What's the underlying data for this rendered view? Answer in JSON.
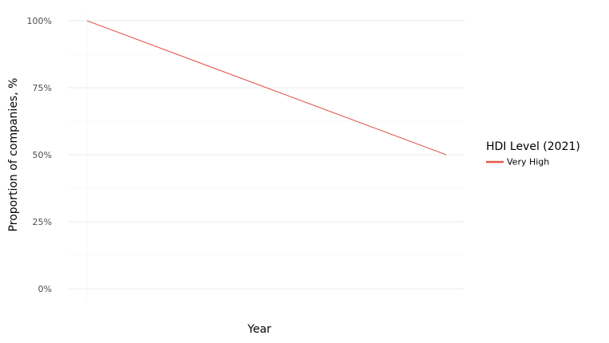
{
  "chart_data": {
    "type": "line",
    "xlabel": "Year",
    "ylabel": "Proportion of companies, %",
    "ylim": [
      0,
      1
    ],
    "yticks": [
      0,
      0.25,
      0.5,
      0.75,
      1.0
    ],
    "ytick_labels": [
      "0%",
      "25%",
      "50%",
      "75%",
      "100%"
    ],
    "x_points": 2,
    "series": [
      {
        "name": "Very High",
        "color": "#e05a4f",
        "values": [
          1.0,
          0.5
        ]
      }
    ],
    "legend": {
      "title": "HDI Level (2021)",
      "placement": "right"
    },
    "grid": true
  }
}
